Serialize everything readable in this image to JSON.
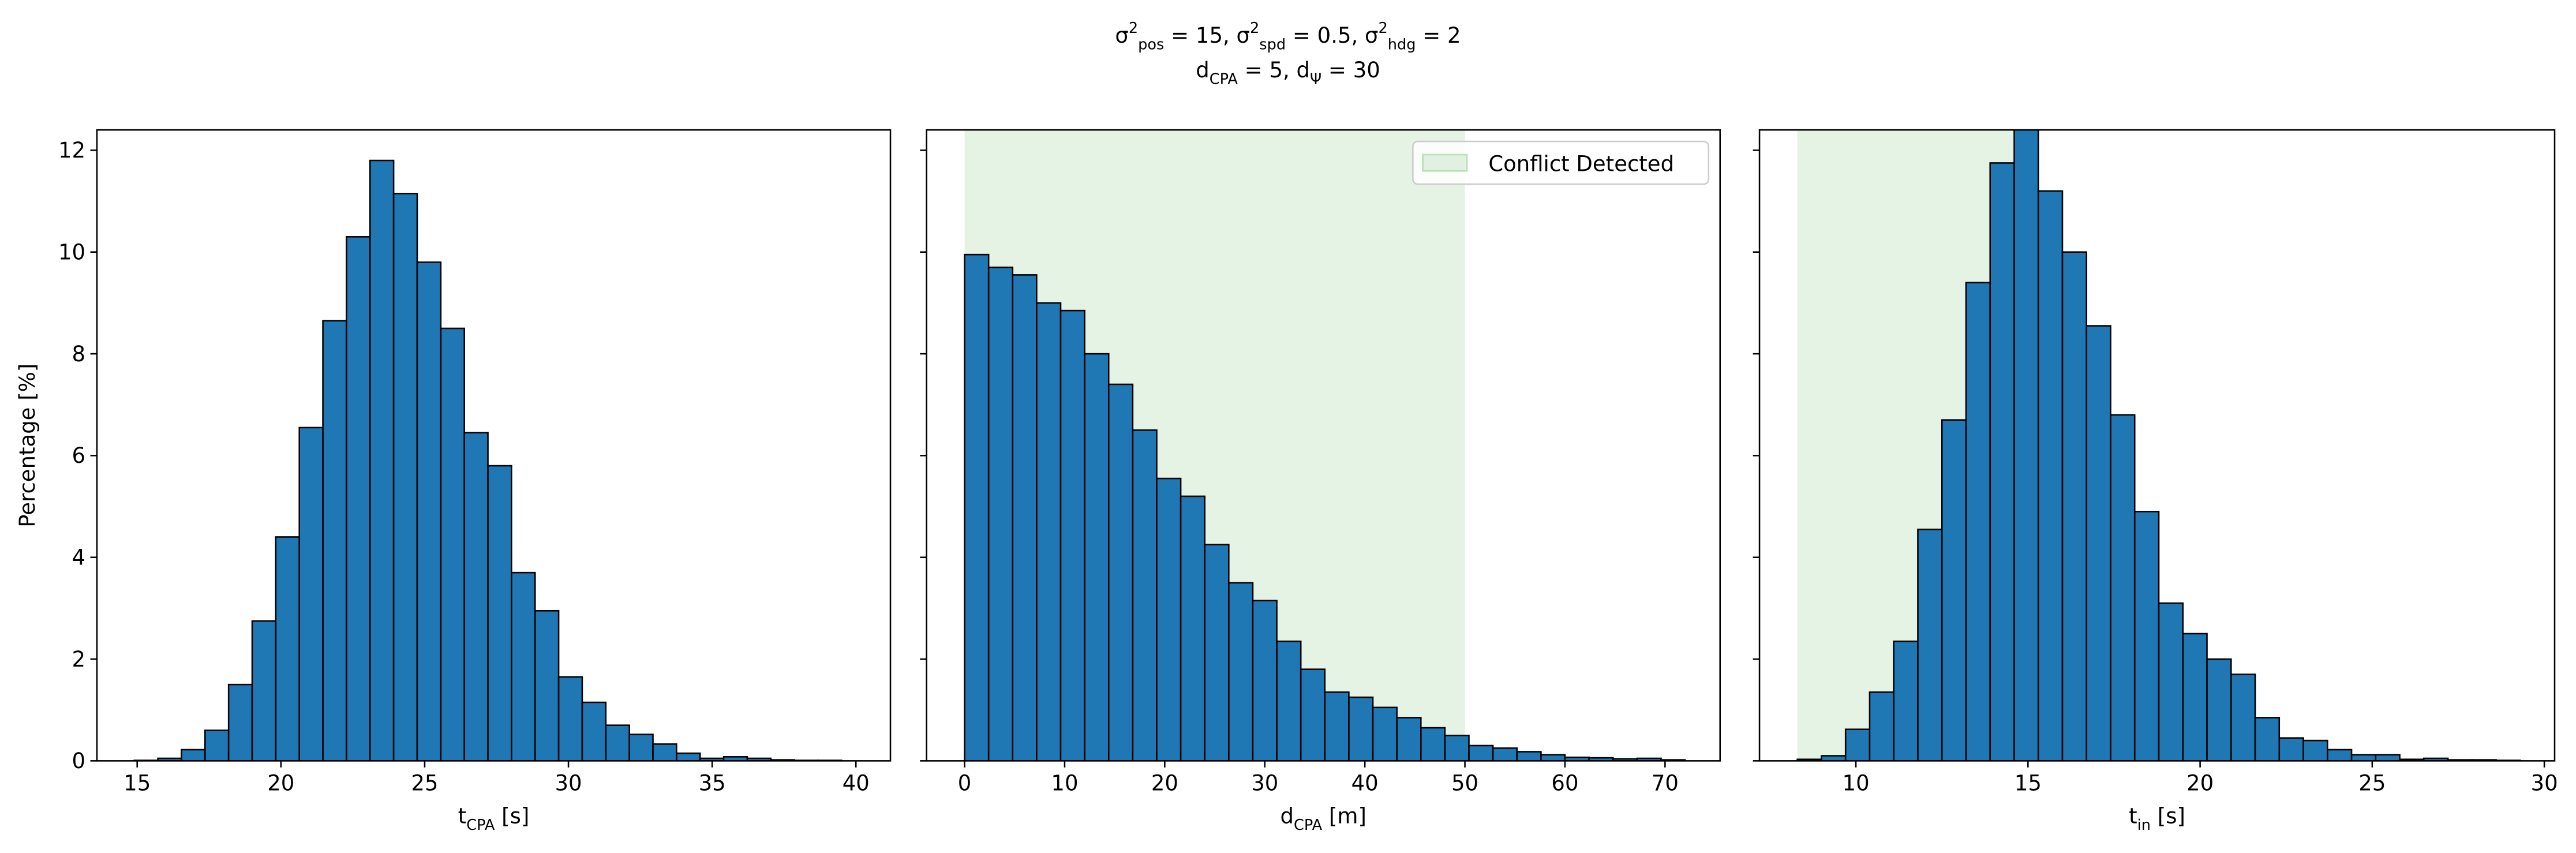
{
  "suptitle": [
    [
      "σ",
      {
        "sup": "2",
        "sub": "pos"
      },
      " = 15, σ",
      {
        "sup": "2",
        "sub": "spd"
      },
      " = 0.5, σ",
      {
        "sup": "2",
        "sub": "hdg"
      },
      " = 2"
    ],
    [
      "d",
      {
        "sub": "CPA"
      },
      " = 5, d",
      {
        "sub": "Ψ"
      },
      " = 30"
    ]
  ],
  "chart_data": [
    {
      "type": "histogram",
      "color": "#1f77b4",
      "bins": [
        14.9,
        15.72,
        16.54,
        17.36,
        18.18,
        19.0,
        19.82,
        20.64,
        21.46,
        22.28,
        23.1,
        23.92,
        24.74,
        25.56,
        26.38,
        27.2,
        28.02,
        28.84,
        29.66,
        30.48,
        31.3,
        32.12,
        32.94,
        33.76,
        34.58,
        35.4,
        36.22,
        37.04,
        37.86,
        38.68,
        39.5
      ],
      "values": [
        0.01,
        0.05,
        0.22,
        0.6,
        1.5,
        2.75,
        4.4,
        6.55,
        8.65,
        10.3,
        11.8,
        11.15,
        9.8,
        8.5,
        6.45,
        5.8,
        3.7,
        2.95,
        1.65,
        1.15,
        0.7,
        0.52,
        0.33,
        0.15,
        0.05,
        0.08,
        0.05,
        0.02,
        0.01,
        0.01
      ],
      "xlim": [
        13.6,
        41.2
      ],
      "xticks": [
        15,
        20,
        25,
        30,
        35,
        40
      ],
      "ylim": [
        0,
        12.4
      ],
      "yticks": [
        0,
        2,
        4,
        6,
        8,
        10,
        12
      ],
      "ytick_labels": true,
      "xlabel": [
        "t",
        {
          "sub": "CPA"
        },
        " [s]"
      ],
      "ylabel": "Percentage [%]"
    },
    {
      "type": "histogram",
      "color": "#1f77b4",
      "bins": [
        0,
        2.4,
        4.8,
        7.2,
        9.6,
        12,
        14.4,
        16.8,
        19.2,
        21.6,
        24,
        26.4,
        28.8,
        31.2,
        33.6,
        36,
        38.4,
        40.8,
        43.2,
        45.6,
        48,
        50.4,
        52.8,
        55.2,
        57.6,
        60,
        62.4,
        64.8,
        67.2,
        69.6,
        72
      ],
      "values": [
        9.95,
        9.7,
        9.55,
        9.0,
        8.85,
        8.0,
        7.4,
        6.5,
        5.55,
        5.2,
        4.25,
        3.5,
        3.15,
        2.35,
        1.8,
        1.35,
        1.25,
        1.05,
        0.85,
        0.65,
        0.5,
        0.3,
        0.25,
        0.18,
        0.12,
        0.07,
        0.06,
        0.04,
        0.05,
        0.02
      ],
      "xlim": [
        -3.8,
        75.5
      ],
      "xticks": [
        0,
        10,
        20,
        30,
        40,
        50,
        60,
        70
      ],
      "ylim": [
        0,
        12.4
      ],
      "yticks": [
        0,
        2,
        4,
        6,
        8,
        10,
        12
      ],
      "ytick_labels": false,
      "xlabel": [
        "d",
        {
          "sub": "CPA"
        },
        " [m]"
      ],
      "span": [
        0,
        50
      ],
      "span_color": "#2ca02c",
      "span_label": "Conflict Detected",
      "legend": "upper right"
    },
    {
      "type": "histogram",
      "color": "#1f77b4",
      "bins": [
        8.3,
        9.0,
        9.7,
        10.4,
        11.1,
        11.8,
        12.5,
        13.2,
        13.9,
        14.6,
        15.3,
        16.0,
        16.7,
        17.4,
        18.1,
        18.8,
        19.5,
        20.2,
        20.9,
        21.6,
        22.3,
        23.0,
        23.7,
        24.4,
        25.1,
        25.8,
        26.5,
        27.2,
        27.9,
        28.6,
        29.3
      ],
      "values": [
        0.03,
        0.1,
        0.62,
        1.35,
        2.35,
        4.55,
        6.7,
        9.4,
        11.75,
        12.6,
        11.2,
        10.0,
        8.55,
        6.8,
        4.9,
        3.1,
        2.5,
        2.0,
        1.7,
        0.85,
        0.45,
        0.4,
        0.22,
        0.12,
        0.12,
        0.03,
        0.05,
        0.02,
        0.02,
        0.01
      ],
      "xlim": [
        7.2,
        30.3
      ],
      "xticks": [
        10,
        15,
        20,
        25,
        30
      ],
      "ylim": [
        0,
        12.4
      ],
      "yticks": [
        0,
        2,
        4,
        6,
        8,
        10,
        12
      ],
      "ytick_labels": false,
      "xlabel": [
        "t",
        {
          "sub": "in"
        },
        " [s]"
      ],
      "span": [
        8.3,
        15.0
      ],
      "span_color": "#2ca02c"
    }
  ]
}
